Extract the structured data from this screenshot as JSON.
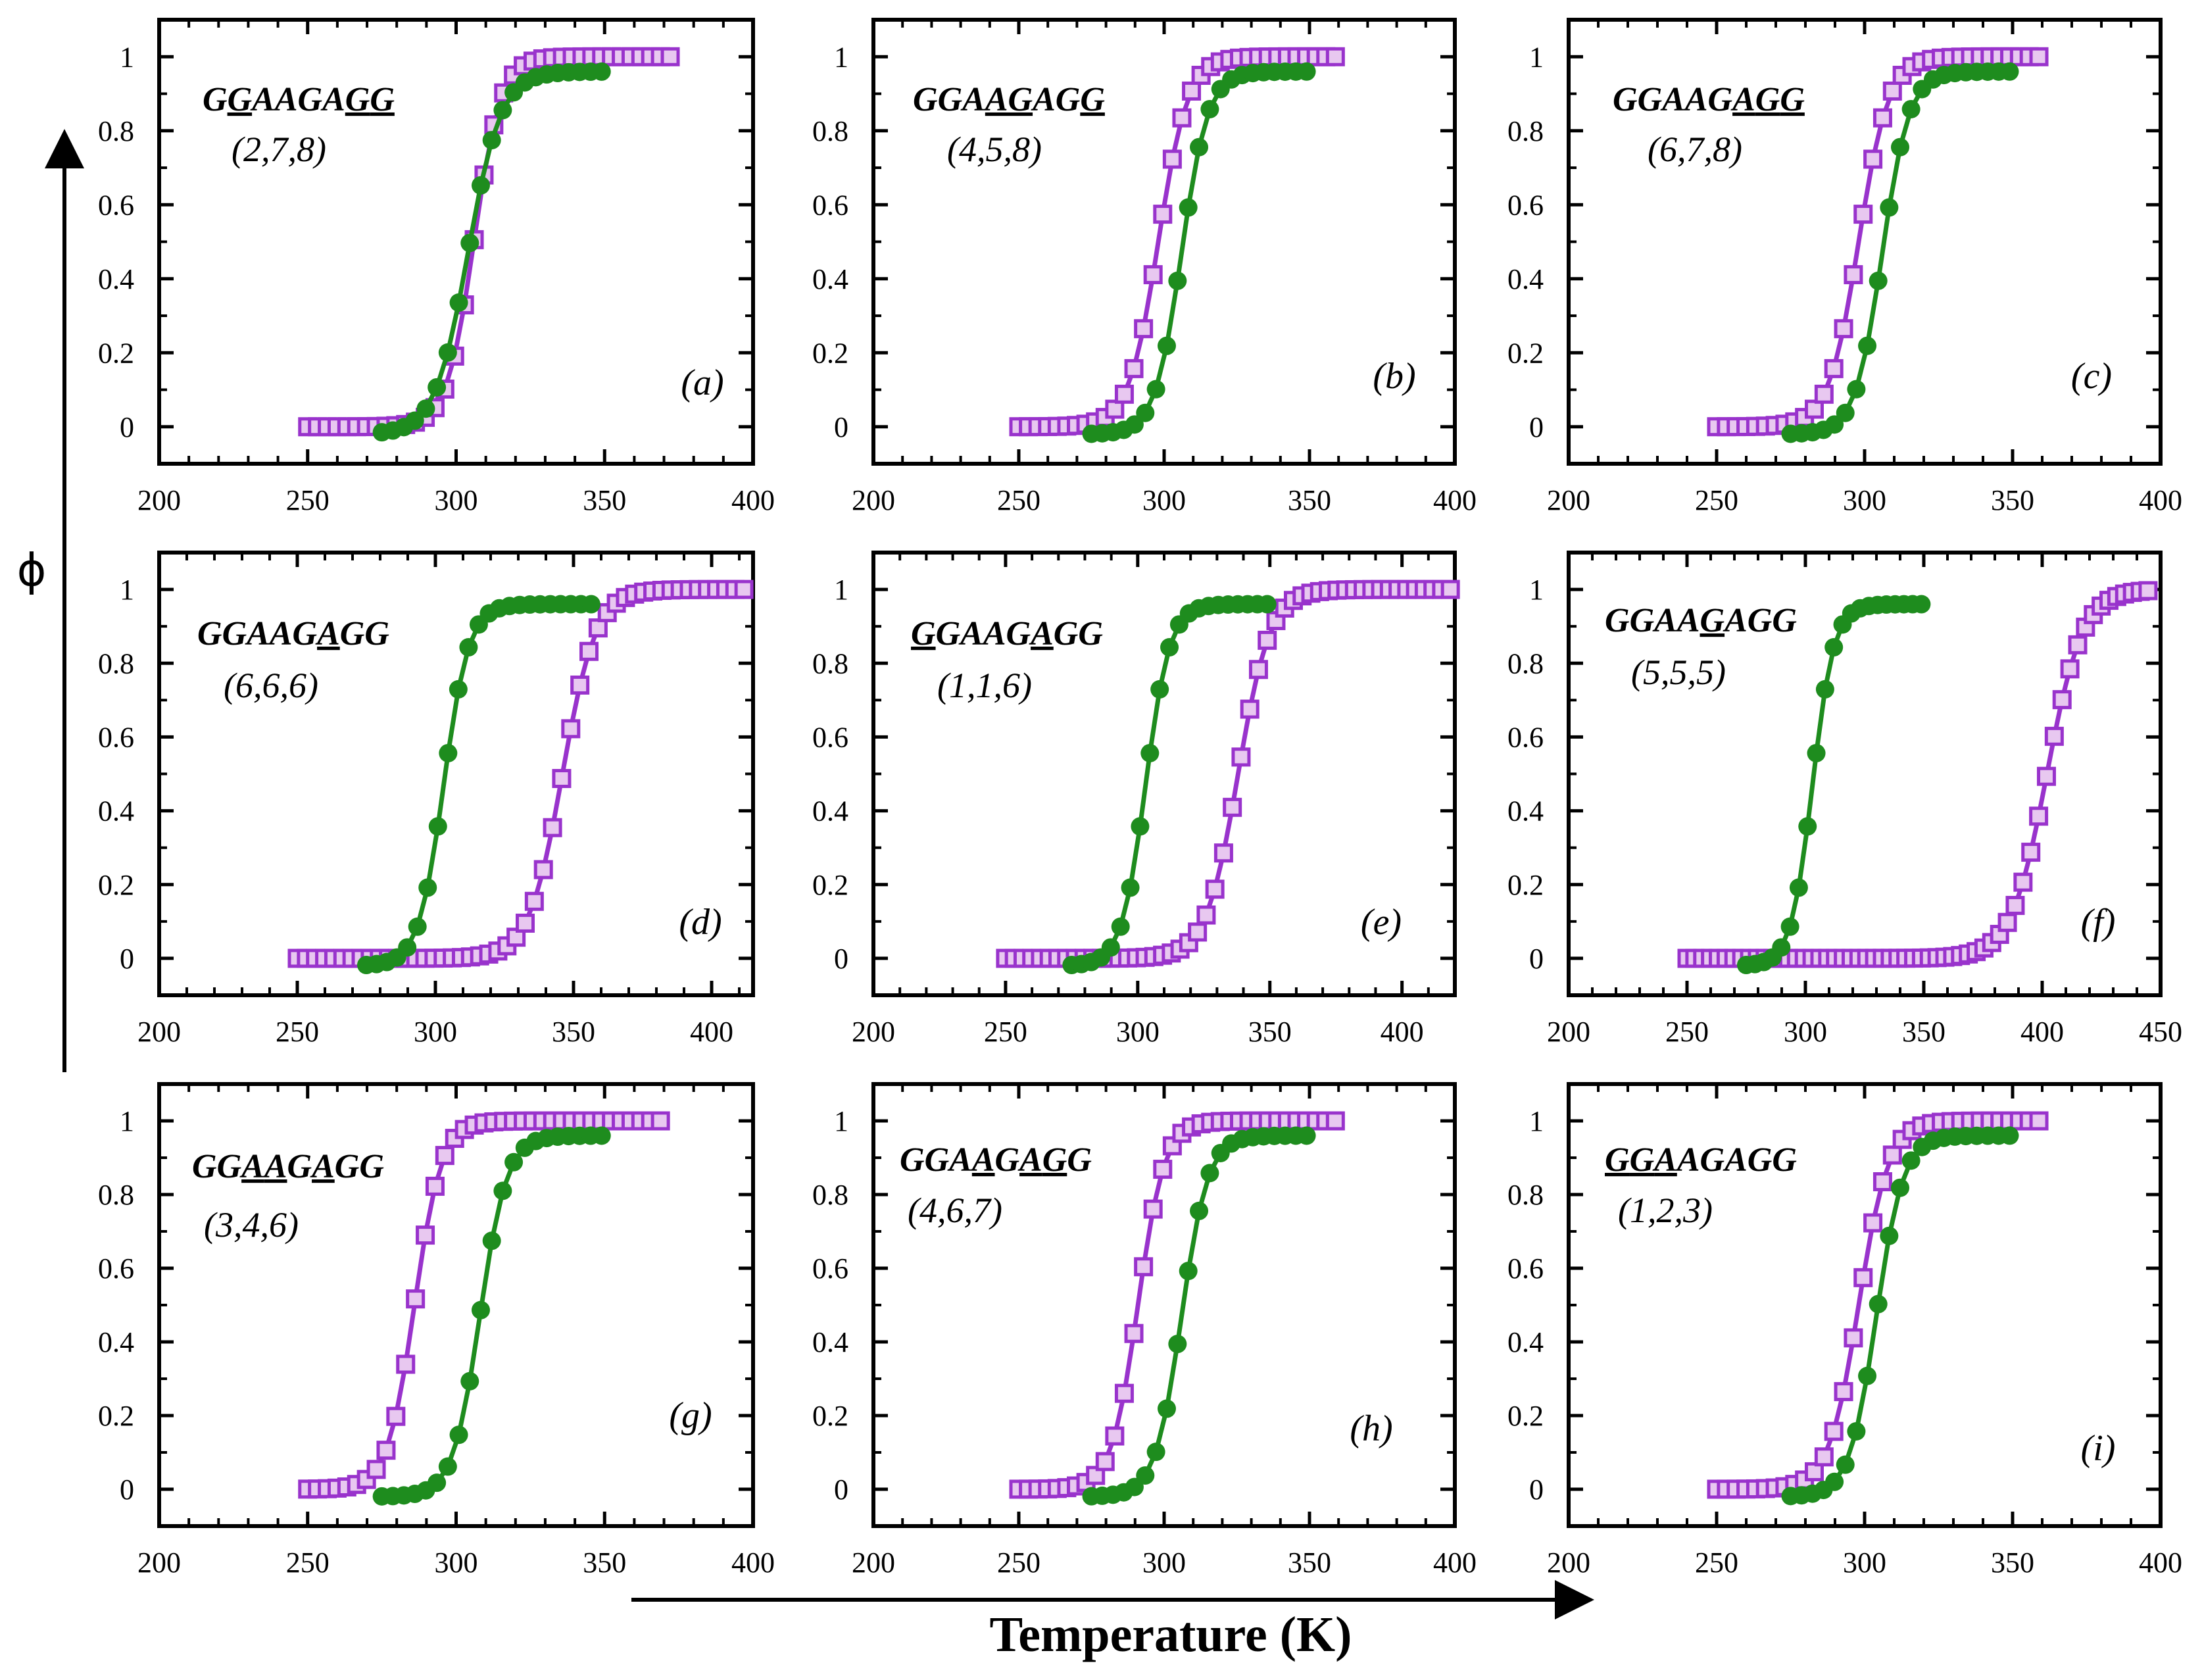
{
  "colors": {
    "purple": "#9933cc",
    "green": "#1e8c1e",
    "purple_light": "#e8c8f0"
  },
  "figure": {
    "xlabel": "Temperature (K)",
    "ylabel": "ϕ"
  },
  "chart_data": [
    {
      "type": "line",
      "panel": "(a)",
      "sequence": "GGAAGAGG",
      "underline": [
        2,
        7,
        8
      ],
      "positions": "(2,7,8)",
      "xlim": [
        200,
        400
      ],
      "ylim": [
        -0.1,
        1.1
      ],
      "xticks": [
        200,
        250,
        300,
        350,
        400
      ],
      "yticks": [
        0,
        0.2,
        0.4,
        0.6,
        0.8,
        1
      ],
      "series": [
        {
          "name": "purple",
          "color": "#9933cc",
          "marker": "square",
          "params": [
            250,
            375,
            306,
            4.5,
            0.0,
            1.0,
            0
          ]
        },
        {
          "name": "green",
          "color": "#1e8c1e",
          "marker": "circle",
          "params": [
            275,
            352,
            304,
            5.5,
            -0.02,
            0.96,
            1
          ]
        }
      ]
    },
    {
      "type": "line",
      "panel": "(b)",
      "sequence": "GGAAGAGG",
      "underline": [
        4,
        5,
        8
      ],
      "positions": "(4,5,8)",
      "xlim": [
        200,
        400
      ],
      "ylim": [
        -0.1,
        1.1
      ],
      "xticks": [
        200,
        250,
        300,
        350,
        400
      ],
      "yticks": [
        0,
        0.2,
        0.4,
        0.6,
        0.8,
        1
      ],
      "series": [
        {
          "name": "purple",
          "color": "#9933cc",
          "marker": "square",
          "params": [
            250,
            360,
            298,
            5.0,
            0.0,
            1.0,
            0
          ]
        },
        {
          "name": "green",
          "color": "#1e8c1e",
          "marker": "circle",
          "params": [
            275,
            352,
            306,
            4.5,
            -0.02,
            0.96,
            1
          ]
        }
      ]
    },
    {
      "type": "line",
      "panel": "(c)",
      "sequence": "GGAAGAGG",
      "underline": [
        6,
        7,
        8
      ],
      "positions": "(6,7,8)",
      "xlim": [
        200,
        400
      ],
      "ylim": [
        -0.1,
        1.1
      ],
      "xticks": [
        200,
        250,
        300,
        350,
        400
      ],
      "yticks": [
        0,
        0.2,
        0.4,
        0.6,
        0.8,
        1
      ],
      "series": [
        {
          "name": "purple",
          "color": "#9933cc",
          "marker": "square",
          "params": [
            250,
            362,
            298,
            5.0,
            0.0,
            1.0,
            0
          ]
        },
        {
          "name": "green",
          "color": "#1e8c1e",
          "marker": "circle",
          "params": [
            275,
            352,
            306,
            4.5,
            -0.02,
            0.96,
            1
          ]
        }
      ]
    },
    {
      "type": "line",
      "panel": "(d)",
      "sequence": "GGAAGAGG",
      "underline": [
        6
      ],
      "positions": "(6,6,6)",
      "xlim": [
        200,
        415
      ],
      "ylim": [
        -0.1,
        1.1
      ],
      "xticks": [
        200,
        250,
        300,
        350,
        400
      ],
      "yticks": [
        0,
        0.2,
        0.4,
        0.6,
        0.8,
        1
      ],
      "series": [
        {
          "name": "purple",
          "color": "#9933cc",
          "marker": "square",
          "params": [
            250,
            412,
            346,
            6.0,
            0.0,
            1.0,
            0
          ]
        },
        {
          "name": "green",
          "color": "#1e8c1e",
          "marker": "circle",
          "params": [
            275,
            358,
            303,
            4.5,
            -0.02,
            0.96,
            1
          ]
        }
      ]
    },
    {
      "type": "line",
      "panel": "(e)",
      "sequence": "GGAAGAGG",
      "underline": [
        1,
        6
      ],
      "positions": "(1,1,6)",
      "xlim": [
        200,
        420
      ],
      "ylim": [
        -0.1,
        1.1
      ],
      "xticks": [
        200,
        250,
        300,
        350,
        400
      ],
      "yticks": [
        0,
        0.2,
        0.4,
        0.6,
        0.8,
        1
      ],
      "series": [
        {
          "name": "purple",
          "color": "#9933cc",
          "marker": "square",
          "params": [
            250,
            420,
            338,
            6.0,
            0.0,
            1.0,
            0
          ]
        },
        {
          "name": "green",
          "color": "#1e8c1e",
          "marker": "circle",
          "params": [
            275,
            352,
            303,
            4.5,
            -0.02,
            0.96,
            1
          ]
        }
      ]
    },
    {
      "type": "line",
      "panel": "(f)",
      "sequence": "GGAAGAGG",
      "underline": [
        5
      ],
      "positions": "(5,5,5)",
      "xlim": [
        200,
        450
      ],
      "ylim": [
        -0.1,
        1.1
      ],
      "xticks": [
        200,
        250,
        300,
        350,
        400,
        450
      ],
      "yticks": [
        0,
        0.2,
        0.4,
        0.6,
        0.8,
        1
      ],
      "series": [
        {
          "name": "purple",
          "color": "#9933cc",
          "marker": "square",
          "params": [
            250,
            445,
            402,
            7.5,
            0.0,
            1.0,
            0
          ]
        },
        {
          "name": "green",
          "color": "#1e8c1e",
          "marker": "circle",
          "params": [
            275,
            352,
            303,
            4.5,
            -0.02,
            0.96,
            1
          ]
        }
      ]
    },
    {
      "type": "line",
      "panel": "(g)",
      "sequence": "GGAAGAGG",
      "underline": [
        3,
        4,
        6
      ],
      "positions": "(3,4,6)",
      "xlim": [
        200,
        400
      ],
      "ylim": [
        -0.1,
        1.1
      ],
      "xticks": [
        200,
        250,
        300,
        350,
        400
      ],
      "yticks": [
        0,
        0.2,
        0.4,
        0.6,
        0.8,
        1
      ],
      "series": [
        {
          "name": "purple",
          "color": "#9933cc",
          "marker": "square",
          "params": [
            250,
            372,
            286,
            4.5,
            0.0,
            1.0,
            0
          ]
        },
        {
          "name": "green",
          "color": "#1e8c1e",
          "marker": "circle",
          "params": [
            275,
            352,
            308,
            4.5,
            -0.02,
            0.96,
            1
          ]
        }
      ]
    },
    {
      "type": "line",
      "panel": "(h)",
      "sequence": "GGAAGAGG",
      "underline": [
        4,
        6,
        7
      ],
      "positions": "(4,6,7)",
      "xlim": [
        200,
        400
      ],
      "ylim": [
        -0.1,
        1.1
      ],
      "xticks": [
        200,
        250,
        300,
        350,
        400
      ],
      "yticks": [
        0,
        0.2,
        0.4,
        0.6,
        0.8,
        1
      ],
      "series": [
        {
          "name": "purple",
          "color": "#9933cc",
          "marker": "square",
          "params": [
            250,
            360,
            291,
            4.5,
            0.0,
            1.0,
            0
          ]
        },
        {
          "name": "green",
          "color": "#1e8c1e",
          "marker": "circle",
          "params": [
            275,
            352,
            306,
            4.5,
            -0.02,
            0.96,
            1
          ]
        }
      ]
    },
    {
      "type": "line",
      "panel": "(i)",
      "sequence": "GGAAGAGG",
      "underline": [
        1,
        2,
        3
      ],
      "positions": "(1,2,3)",
      "xlim": [
        200,
        400
      ],
      "ylim": [
        -0.1,
        1.1
      ],
      "xticks": [
        200,
        250,
        300,
        350,
        400
      ],
      "yticks": [
        0,
        0.2,
        0.4,
        0.6,
        0.8,
        1
      ],
      "series": [
        {
          "name": "purple",
          "color": "#9933cc",
          "marker": "square",
          "params": [
            250,
            362,
            298,
            5.0,
            0.0,
            1.0,
            0
          ]
        },
        {
          "name": "green",
          "color": "#1e8c1e",
          "marker": "circle",
          "params": [
            275,
            352,
            304,
            4.5,
            -0.02,
            0.96,
            1
          ]
        }
      ]
    }
  ]
}
